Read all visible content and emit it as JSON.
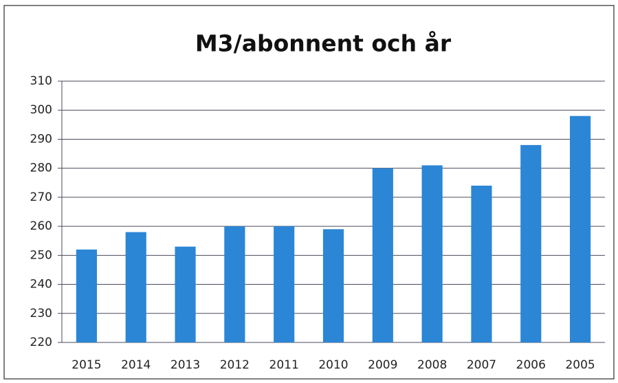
{
  "chart_data": {
    "type": "bar",
    "title": "M3/abonnent och år",
    "categories": [
      "2015",
      "2014",
      "2013",
      "2012",
      "2011",
      "2010",
      "2009",
      "2008",
      "2007",
      "2006",
      "2005"
    ],
    "values": [
      252,
      258,
      253,
      260,
      260,
      259,
      280,
      281,
      274,
      288,
      298
    ],
    "color": "#2b86d6",
    "ylim": [
      220,
      310
    ],
    "yticks": [
      220,
      230,
      240,
      250,
      260,
      270,
      280,
      290,
      300,
      310
    ],
    "grid": true
  }
}
